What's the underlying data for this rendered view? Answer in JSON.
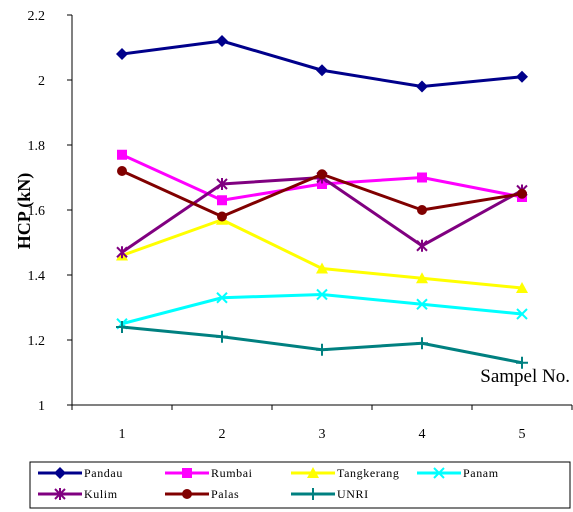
{
  "chart_data": {
    "type": "line",
    "title": "",
    "xlabel": "",
    "ylabel": "HCP (kN)",
    "categories": [
      "1",
      "2",
      "3",
      "4",
      "5"
    ],
    "ylim": [
      1,
      2.2
    ],
    "yticks": [
      "1",
      "1.2",
      "1.4",
      "1.6",
      "1.8",
      "2",
      "2.2"
    ],
    "grid": false,
    "legend_position": "bottom",
    "annotation": "Sampel No.",
    "series": [
      {
        "name": "Pandau",
        "color": "#00008B",
        "marker": "diamond",
        "values": [
          2.08,
          2.12,
          2.03,
          1.98,
          2.01
        ]
      },
      {
        "name": "Rumbai",
        "color": "#FF00FF",
        "marker": "square",
        "values": [
          1.77,
          1.63,
          1.68,
          1.7,
          1.64
        ]
      },
      {
        "name": "Tangkerang",
        "color": "#FFFF00",
        "marker": "triangle",
        "values": [
          1.46,
          1.57,
          1.42,
          1.39,
          1.36
        ]
      },
      {
        "name": "Panam",
        "color": "#00FFFF",
        "marker": "x",
        "values": [
          1.25,
          1.33,
          1.34,
          1.31,
          1.28
        ]
      },
      {
        "name": "Kulim",
        "color": "#800080",
        "marker": "star",
        "values": [
          1.47,
          1.68,
          1.7,
          1.49,
          1.66
        ]
      },
      {
        "name": "Palas",
        "color": "#800000",
        "marker": "circle",
        "values": [
          1.72,
          1.58,
          1.71,
          1.6,
          1.65
        ]
      },
      {
        "name": "UNRI",
        "color": "#008080",
        "marker": "plus",
        "values": [
          1.24,
          1.21,
          1.17,
          1.19,
          1.13
        ]
      }
    ]
  }
}
